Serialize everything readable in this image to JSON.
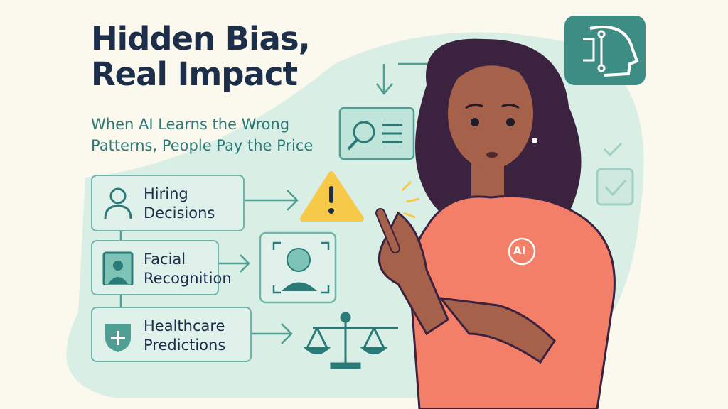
{
  "header": {
    "title_line1": "Hidden Bias,",
    "title_line2": "Real Impact",
    "subtitle_line1": "When AI Learns the Wrong",
    "subtitle_line2": "Patterns, People Pay the Price"
  },
  "cards": [
    {
      "line1": "Hiring",
      "line2": "Decisions",
      "icon": "person-outline-icon"
    },
    {
      "line1": "Facial",
      "line2": "Recognition",
      "icon": "portrait-icon"
    },
    {
      "line1": "Healthcare",
      "line2": "Predictions",
      "icon": "shield-plus-icon"
    }
  ],
  "shirt_badge": "AI",
  "colors": {
    "background": "#fbf8ee",
    "blob": "#d9efe6",
    "title": "#1c2e4a",
    "accent": "#2a7a78",
    "warning": "#f7c948",
    "shirt": "#f47f68"
  }
}
